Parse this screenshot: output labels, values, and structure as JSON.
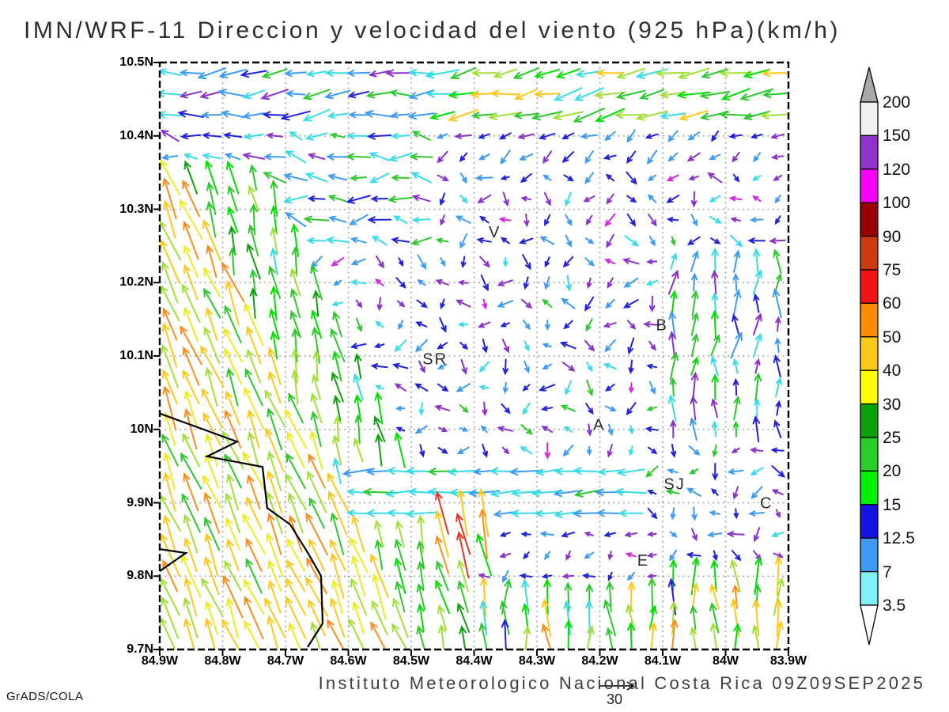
{
  "title": "IMN/WRF-11 Direccion y velocidad del viento (925 hPa)(km/h)",
  "credit": "GrADS/COLA",
  "caption": "Instituto Meteorologico Nacional Costa Rica 09Z09SEP2025",
  "reference_arrow": {
    "label": "30"
  },
  "chart_data": {
    "type": "quiver",
    "title": "IMN/WRF-11 Direccion y velocidad del viento (925 hPa)(km/h)",
    "variable": "Direccion y velocidad del viento",
    "level": "925 hPa",
    "units": "km/h",
    "valid_time": "09Z09SEP2025",
    "grid": true,
    "x_axis": {
      "labels": [
        "84.9W",
        "84.8W",
        "84.7W",
        "84.6W",
        "84.5W",
        "84.4W",
        "84.3W",
        "84.2W",
        "84.1W",
        "84W",
        "83.9W"
      ]
    },
    "y_axis": {
      "labels": [
        "10.5N",
        "10.4N",
        "10.3N",
        "10.2N",
        "10.1N",
        "10N",
        "9.9N",
        "9.8N",
        "9.7N"
      ]
    },
    "colorbar": {
      "levels": [
        3.5,
        7,
        12.5,
        15,
        20,
        25,
        30,
        40,
        50,
        60,
        75,
        90,
        100,
        120,
        150,
        200
      ],
      "colors": [
        "#7df0f8",
        "#3e9bf5",
        "#1414e0",
        "#00f000",
        "#28cd28",
        "#0aa00a",
        "#ffff00",
        "#ffc818",
        "#ff8c00",
        "#f01414",
        "#cc3a10",
        "#980000",
        "#fa00fa",
        "#9232cc",
        "#f0f0f0"
      ],
      "under_color": "#ffffff",
      "over_color": "#a8a8a8"
    },
    "station_labels": [
      {
        "label": "V",
        "fx": 0.533,
        "fy": 0.291
      },
      {
        "label": "B",
        "fx": 0.799,
        "fy": 0.449
      },
      {
        "label": "SR",
        "fx": 0.438,
        "fy": 0.507
      },
      {
        "label": "A",
        "fx": 0.699,
        "fy": 0.619
      },
      {
        "label": "SJ",
        "fx": 0.819,
        "fy": 0.72
      },
      {
        "label": "C",
        "fx": 0.965,
        "fy": 0.752
      },
      {
        "label": "E",
        "fx": 0.769,
        "fy": 0.85
      }
    ],
    "coastline": [
      [
        [
          0.0,
          0.598
        ],
        [
          0.123,
          0.646
        ],
        [
          0.0755,
          0.671
        ],
        [
          0.1635,
          0.689
        ],
        [
          0.171,
          0.759
        ],
        [
          0.2075,
          0.787
        ],
        [
          0.2365,
          0.837
        ],
        [
          0.2566,
          0.8747
        ],
        [
          0.2591,
          0.9555
        ],
        [
          0.2352,
          0.996
        ]
      ],
      [
        [
          0.0,
          0.829
        ],
        [
          0.0415,
          0.8356
        ],
        [
          0.0,
          0.8666
        ]
      ]
    ],
    "arrow_palette": {
      "cyan": "#38dce8",
      "lightblue": "#3e9bf5",
      "blue": "#2020dd",
      "purple": "#8a30cc",
      "magenta": "#d428e0",
      "brightgreen": "#00e000",
      "green": "#2cc82c",
      "darkgreen": "#0f9f0f",
      "lightgreen": "#a0e038",
      "yellow": "#ecec20",
      "gold": "#ffc818",
      "orange": "#ff8c1a",
      "red": "#f03020"
    },
    "wind_field": {
      "cols": 30,
      "rows": 28,
      "seed": 20250909,
      "zones": [
        {
          "name": "top-band-left",
          "x": [
            0,
            0.42
          ],
          "y": [
            0,
            0.115
          ],
          "dir": [
            185,
            18
          ],
          "len": [
            22,
            36
          ],
          "colors": {
            "cyan": 3,
            "lightblue": 3,
            "blue": 2,
            "green": 1,
            "purple": 1
          }
        },
        {
          "name": "top-band-right",
          "x": [
            0.42,
            1.01
          ],
          "y": [
            0,
            0.115
          ],
          "dir": [
            191,
            14
          ],
          "len": [
            28,
            42
          ],
          "colors": {
            "green": 3,
            "lightgreen": 3,
            "cyan": 2,
            "gold": 1.5,
            "brightgreen": 1
          }
        },
        {
          "name": "subtop-rows",
          "x": [
            0.42,
            1.01
          ],
          "y": [
            0.115,
            0.19
          ],
          "dir": [
            212,
            28
          ],
          "len": [
            12,
            20
          ],
          "colors": {
            "blue": 3,
            "lightblue": 2,
            "purple": 2
          }
        },
        {
          "name": "red-cluster",
          "x": [
            0.435,
            0.535
          ],
          "y": [
            0.745,
            0.85
          ],
          "dir": [
            103,
            7
          ],
          "len": [
            46,
            64
          ],
          "colors": {
            "red": 2,
            "orange": 2,
            "gold": 1.5,
            "brightgreen": 1
          }
        },
        {
          "name": "west-cyan-band",
          "x": [
            0.3,
            0.78
          ],
          "y": [
            0.695,
            0.775
          ],
          "dir": [
            183,
            8
          ],
          "len": [
            26,
            40
          ],
          "colors": {
            "cyan": 3,
            "lightblue": 1.5,
            "green": 0.7
          }
        },
        {
          "name": "sw-strong",
          "x": [
            0,
            0.47
          ],
          "y": [
            0.18,
            1.01
          ],
          "diag": {
            "xTop": 0.03,
            "yTop": 0.18,
            "xBot": 0.42,
            "yBot": 1.0
          },
          "dir": [
            112,
            8
          ],
          "len": [
            40,
            58
          ],
          "colors": {
            "yellow": 3,
            "gold": 2.5,
            "lightgreen": 2,
            "orange": 1.2,
            "green": 1
          }
        },
        {
          "name": "coastal-green",
          "x": [
            0,
            0.6
          ],
          "y": [
            0.18,
            1.01
          ],
          "diag": {
            "xTop": 0.16,
            "yTop": 0.18,
            "xBot": 0.55,
            "yBot": 1.0
          },
          "dir": [
            102,
            10
          ],
          "len": [
            30,
            46
          ],
          "colors": {
            "green": 3,
            "brightgreen": 2,
            "lightgreen": 2,
            "darkgreen": 1,
            "cyan": 0.7
          }
        },
        {
          "name": "south-short-rows",
          "x": [
            0.28,
            0.8
          ],
          "y": [
            0.79,
            0.875
          ],
          "dir": [
            215,
            55
          ],
          "len": [
            9,
            16
          ],
          "colors": {
            "purple": 3,
            "blue": 2.5,
            "magenta": 1,
            "lightblue": 1
          }
        },
        {
          "name": "south-mixed",
          "x": [
            0.28,
            1.01
          ],
          "y": [
            0.86,
            1.01
          ],
          "dir": [
            92,
            15
          ],
          "len": [
            26,
            48
          ],
          "colors": {
            "green": 2.5,
            "lightgreen": 2,
            "gold": 2,
            "orange": 1.2,
            "cyan": 1,
            "brightgreen": 1.5,
            "blue": 0.8
          }
        },
        {
          "name": "east-vertical",
          "x": [
            0.8,
            1.01
          ],
          "y": [
            0.33,
            0.64
          ],
          "dir": [
            88,
            22
          ],
          "len": [
            16,
            36
          ],
          "colors": {
            "cyan": 2.5,
            "green": 1.5,
            "blue": 1.5,
            "lightblue": 1.5,
            "purple": 1.5,
            "brightgreen": 1
          }
        },
        {
          "name": "northwest-mid",
          "x": [
            0,
            0.42
          ],
          "y": [
            0.115,
            0.32
          ],
          "dir": [
            178,
            35
          ],
          "len": [
            16,
            30
          ],
          "colors": {
            "cyan": 3,
            "lightblue": 2.5,
            "blue": 2,
            "green": 1.5,
            "purple": 1
          }
        },
        {
          "name": "interior",
          "x": [
            0,
            1.01
          ],
          "y": [
            0,
            1.01
          ],
          "dir": [
            235,
            105
          ],
          "len": [
            9,
            20
          ],
          "colors": {
            "purple": 3,
            "blue": 3,
            "lightblue": 2.2,
            "cyan": 1.2,
            "magenta": 0.5,
            "green": 0.4
          }
        }
      ]
    }
  }
}
